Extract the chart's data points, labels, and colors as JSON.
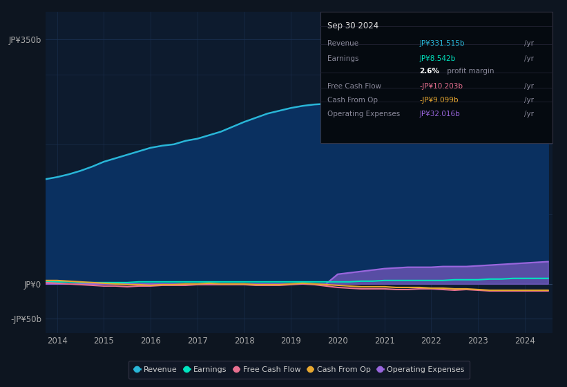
{
  "background_color": "#0d1520",
  "plot_bg_color": "#0d1b2e",
  "fill_bg_color": "#0a2040",
  "years": [
    2013.75,
    2014.0,
    2014.25,
    2014.5,
    2014.75,
    2015.0,
    2015.25,
    2015.5,
    2015.75,
    2016.0,
    2016.25,
    2016.5,
    2016.75,
    2017.0,
    2017.25,
    2017.5,
    2017.75,
    2018.0,
    2018.25,
    2018.5,
    2018.75,
    2019.0,
    2019.25,
    2019.5,
    2019.75,
    2020.0,
    2020.25,
    2020.5,
    2020.75,
    2021.0,
    2021.25,
    2021.5,
    2021.75,
    2022.0,
    2022.25,
    2022.5,
    2022.75,
    2023.0,
    2023.25,
    2023.5,
    2023.75,
    2024.0,
    2024.25,
    2024.5
  ],
  "revenue": [
    150,
    153,
    157,
    162,
    168,
    175,
    180,
    185,
    190,
    195,
    198,
    200,
    205,
    208,
    213,
    218,
    225,
    232,
    238,
    244,
    248,
    252,
    255,
    257,
    258,
    255,
    250,
    246,
    244,
    248,
    252,
    256,
    255,
    250,
    245,
    242,
    240,
    245,
    252,
    262,
    275,
    295,
    315,
    332
  ],
  "earnings": [
    3,
    3,
    3,
    2,
    2,
    2,
    2,
    2,
    3,
    3,
    3,
    3,
    3,
    3,
    3,
    3,
    3,
    3,
    3,
    3,
    3,
    3,
    3,
    3,
    3,
    3,
    3,
    4,
    4,
    5,
    5,
    5,
    5,
    5,
    5,
    6,
    6,
    6,
    7,
    7,
    8,
    8,
    8,
    8
  ],
  "fcf": [
    2,
    1,
    0,
    -1,
    -2,
    -3,
    -3,
    -4,
    -3,
    -3,
    -2,
    -2,
    -2,
    -1,
    -1,
    -1,
    -1,
    -1,
    -2,
    -2,
    -2,
    -1,
    0,
    -1,
    -3,
    -5,
    -6,
    -7,
    -7,
    -7,
    -8,
    -8,
    -7,
    -7,
    -8,
    -9,
    -8,
    -9,
    -10,
    -10,
    -10,
    -10,
    -10,
    -10
  ],
  "cash_from_op": [
    5,
    5,
    4,
    3,
    2,
    1,
    0,
    -1,
    -1,
    -2,
    -1,
    -1,
    0,
    0,
    1,
    0,
    0,
    0,
    -1,
    -1,
    -1,
    0,
    1,
    0,
    -1,
    -2,
    -3,
    -4,
    -4,
    -4,
    -5,
    -5,
    -5,
    -6,
    -6,
    -7,
    -7,
    -8,
    -9,
    -9,
    -9,
    -9,
    -9,
    -9
  ],
  "op_expenses": [
    0,
    0,
    0,
    0,
    0,
    0,
    0,
    0,
    0,
    0,
    0,
    0,
    0,
    0,
    0,
    0,
    0,
    0,
    0,
    0,
    0,
    0,
    0,
    0,
    0,
    14,
    16,
    18,
    20,
    22,
    23,
    24,
    24,
    24,
    25,
    25,
    25,
    26,
    27,
    28,
    29,
    30,
    31,
    32
  ],
  "ylim_min": -70,
  "ylim_max": 390,
  "yticks": [
    -50,
    0,
    350
  ],
  "ytick_labels": [
    "-JP¥50b",
    "JP¥0",
    "JP¥350b"
  ],
  "xticks": [
    2014,
    2015,
    2016,
    2017,
    2018,
    2019,
    2020,
    2021,
    2022,
    2023,
    2024
  ],
  "revenue_color": "#29b6d8",
  "revenue_fill_color": "#0a3060",
  "earnings_color": "#00e5c0",
  "fcf_color": "#e87090",
  "cash_from_op_color": "#e8a830",
  "op_expenses_color": "#9966dd",
  "grid_color": "#1a3050",
  "grid_h_color": "#1a3050",
  "legend_bg": "#111827",
  "tooltip_bg": "#050a10"
}
